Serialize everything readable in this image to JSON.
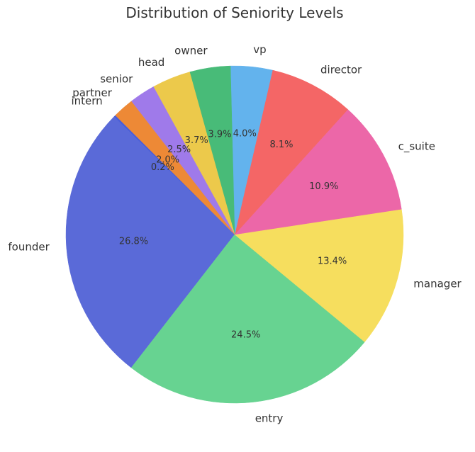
{
  "chart_data": {
    "type": "pie",
    "title": "Distribution of Seniority Levels",
    "start_angle_deg": 135,
    "direction": "counterclockwise",
    "legend": "none",
    "slices": [
      {
        "label": "intern",
        "value": 0.2,
        "pct_text": "0.2%",
        "color": "#4c5fd7"
      },
      {
        "label": "founder",
        "value": 26.8,
        "pct_text": "26.8%",
        "color": "#5a6ad8"
      },
      {
        "label": "entry",
        "value": 24.5,
        "pct_text": "24.5%",
        "color": "#67d391"
      },
      {
        "label": "manager",
        "value": 13.4,
        "pct_text": "13.4%",
        "color": "#f6de5e"
      },
      {
        "label": "c_suite",
        "value": 10.9,
        "pct_text": "10.9%",
        "color": "#ec67a8"
      },
      {
        "label": "director",
        "value": 8.1,
        "pct_text": "8.1%",
        "color": "#f46666"
      },
      {
        "label": "vp",
        "value": 4.0,
        "pct_text": "4.0%",
        "color": "#63b3ed"
      },
      {
        "label": "owner",
        "value": 3.9,
        "pct_text": "3.9%",
        "color": "#48bb78"
      },
      {
        "label": "head",
        "value": 3.7,
        "pct_text": "3.7%",
        "color": "#ecc94b"
      },
      {
        "label": "senior",
        "value": 2.5,
        "pct_text": "2.5%",
        "color": "#9f7aea"
      },
      {
        "label": "partner",
        "value": 2.0,
        "pct_text": "2.0%",
        "color": "#ed8936"
      }
    ]
  }
}
